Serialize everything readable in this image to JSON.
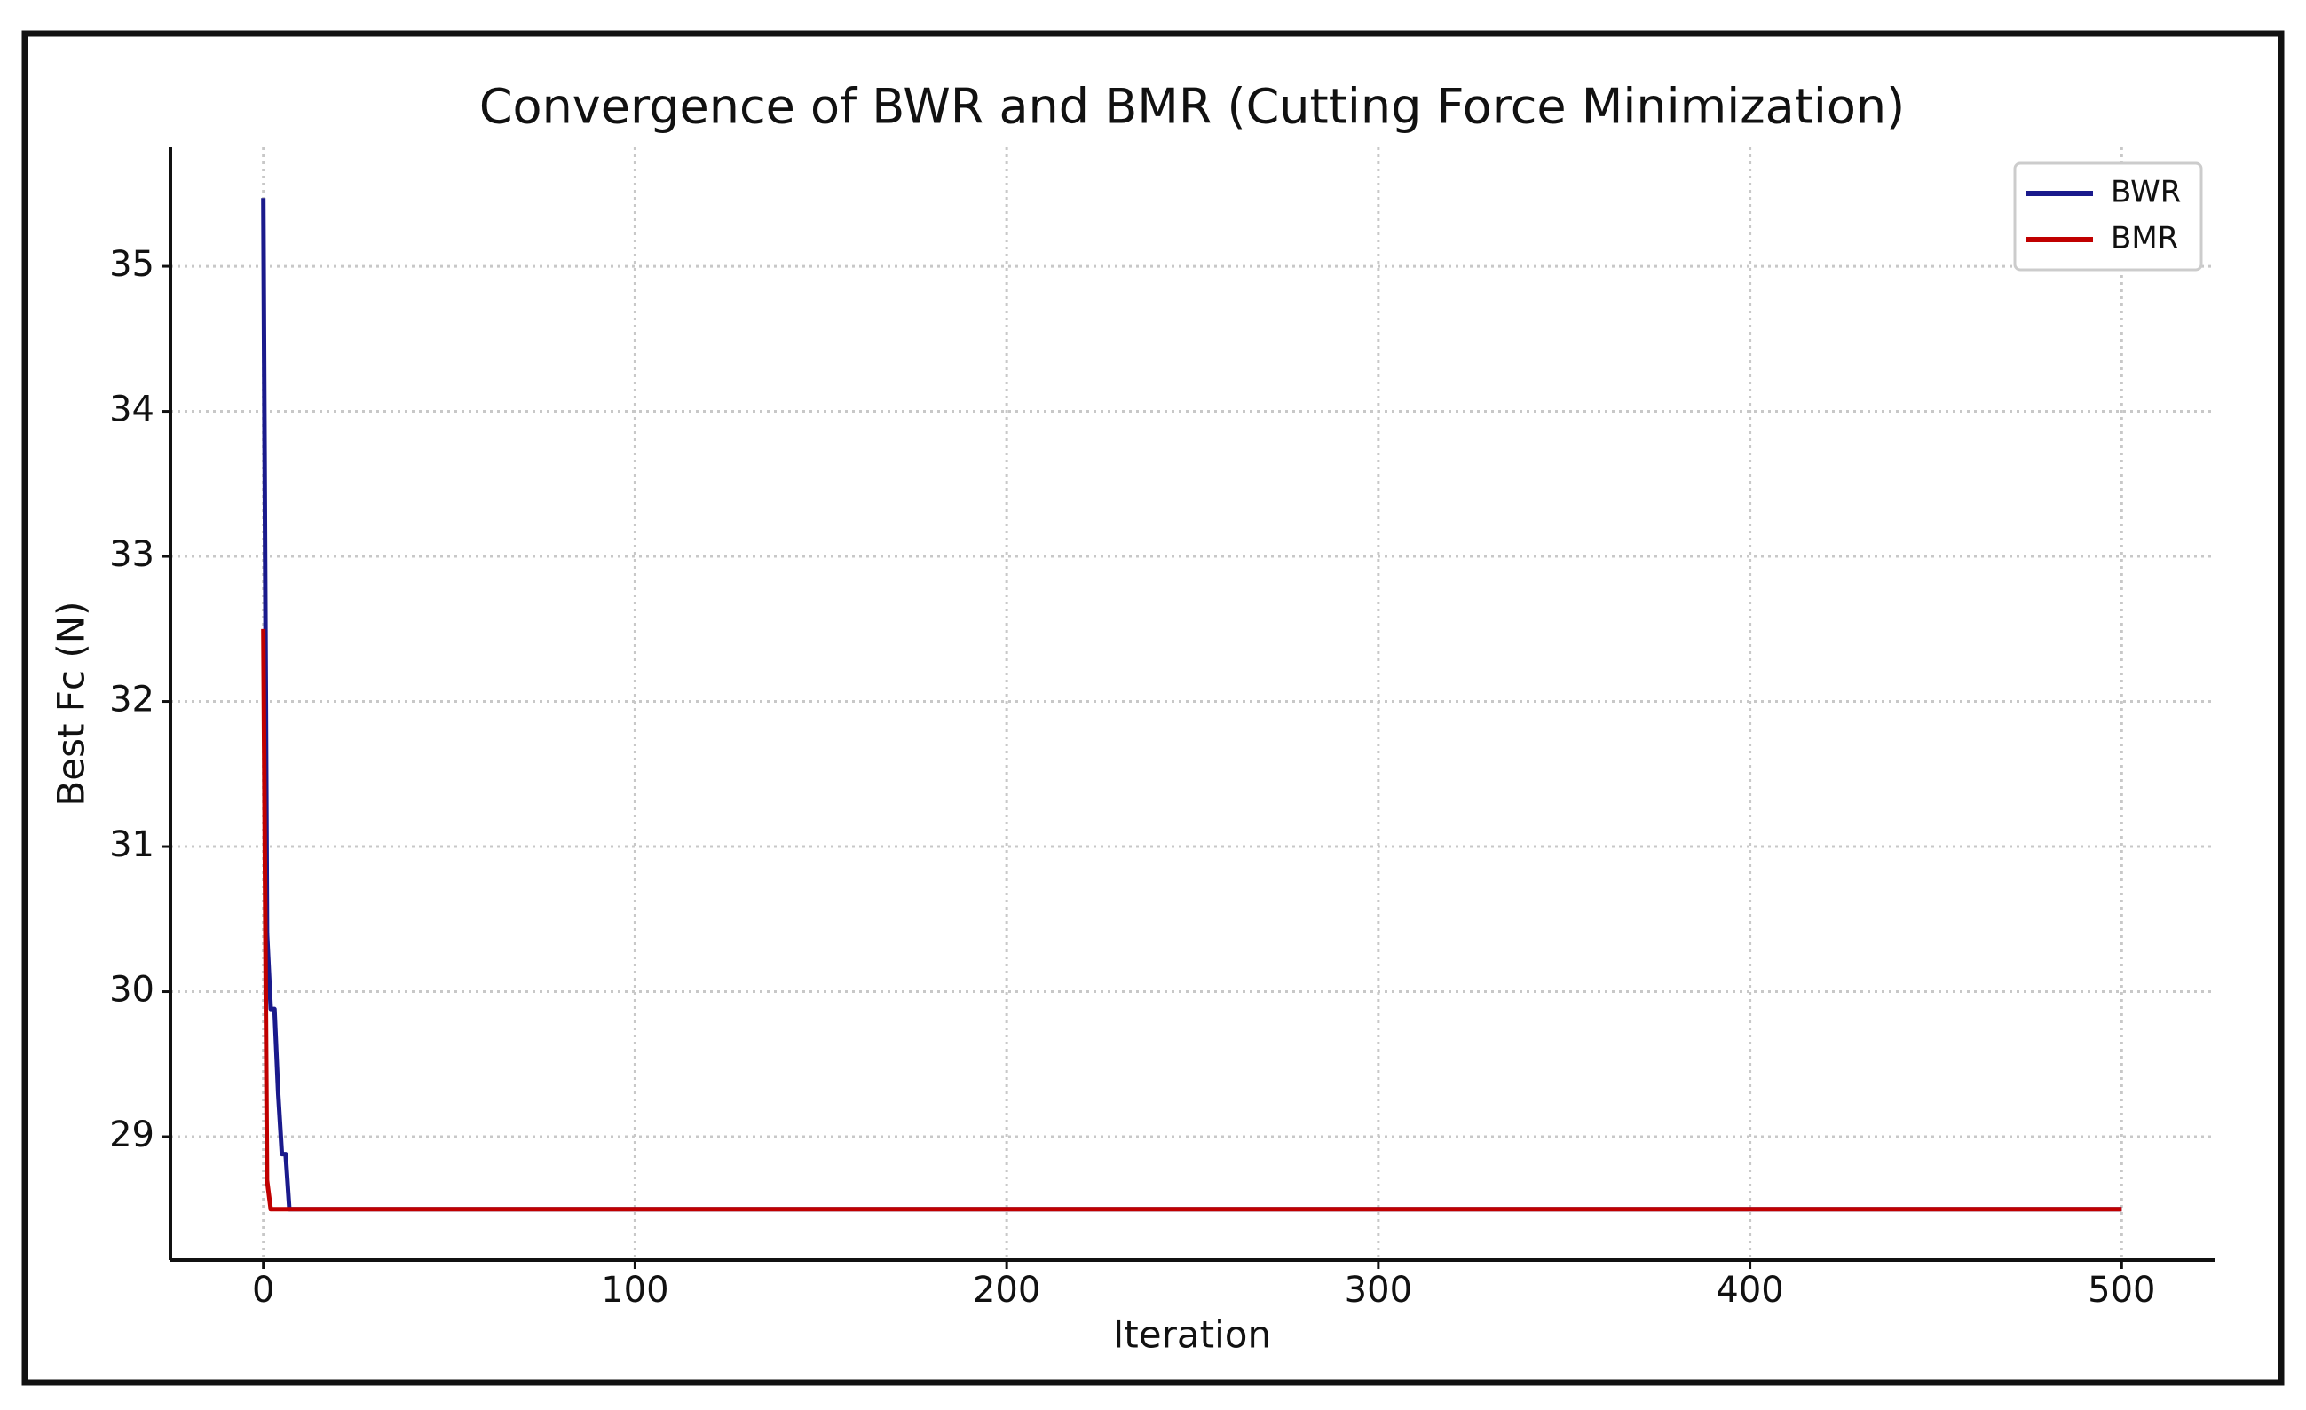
{
  "chart_data": {
    "type": "line",
    "title": "Convergence of BWR and BMR (Cutting Force Minimization)",
    "xlabel": "Iteration",
    "ylabel": "Best Fc (N)",
    "x": [
      0,
      1,
      2,
      3,
      4,
      5,
      6,
      7,
      500
    ],
    "series": [
      {
        "name": "BWR",
        "color": "#1a1a8c",
        "values": [
          35.47,
          30.4,
          29.88,
          29.88,
          29.3,
          28.88,
          28.88,
          28.5,
          28.5
        ]
      },
      {
        "name": "BMR",
        "color": "#c00000",
        "values": [
          32.5,
          28.7,
          28.5,
          28.5,
          28.5,
          28.5,
          28.5,
          28.5,
          28.5
        ]
      }
    ],
    "xlim": [
      -25,
      525
    ],
    "ylim": [
      28.15,
      35.82
    ],
    "xticks": [
      0,
      100,
      200,
      300,
      400,
      500
    ],
    "yticks": [
      29,
      30,
      31,
      32,
      33,
      34,
      35
    ],
    "grid": true,
    "legend": "upper right"
  }
}
